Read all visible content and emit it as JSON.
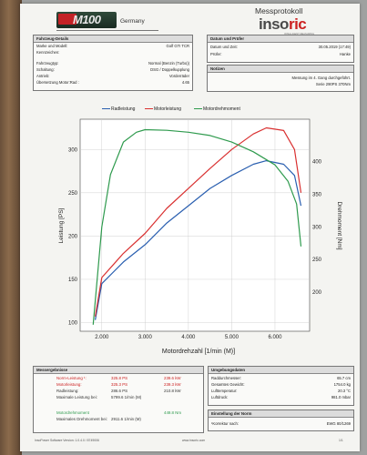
{
  "header": {
    "logo_text": "M100",
    "logo_country": "Germany",
    "title": "Messprotokoll",
    "brand_prefix": "inso",
    "brand_accent": "ric",
    "brand_sub": "INTELLIGENT MEASURING"
  },
  "vehicle": {
    "heading": "Fahrzeug-Details",
    "rows": [
      {
        "label": "Marke und Modell:",
        "value": "Golf GTI TCR"
      },
      {
        "label": "Kennzeichen:",
        "value": ""
      },
      {
        "label": "Fahrzeugtyp:",
        "value": "Normal (Benzin (Turbo))"
      },
      {
        "label": "Schaltung:",
        "value": "DSG / Doppelkupplung"
      },
      {
        "label": "Antrieb:",
        "value": "Vorderräder"
      },
      {
        "label": "Übersetzung Motor:Rad :",
        "value": "4.65"
      }
    ]
  },
  "test": {
    "heading": "Datum und Prüfer",
    "rows": [
      {
        "label": "Datum und Zeit:",
        "value": "30.05.2019 (17:49)"
      },
      {
        "label": "Prüfer:",
        "value": "Hanke"
      }
    ]
  },
  "notes": {
    "heading": "Notizen",
    "lines": [
      "Messung im 4. Gang durchgeführt.",
      "Serie 290PS 370Nm"
    ]
  },
  "chart_data": {
    "type": "line",
    "legend": [
      "Radleistung",
      "Motorleistung",
      "Motordrehmoment"
    ],
    "colors": {
      "Radleistung": "#2a5fb0",
      "Motorleistung": "#d93030",
      "Motordrehmoment": "#2e9a4d"
    },
    "xlabel": "Motordrehzahl [1/min (M)]",
    "ylabel": "Leistung [PS]",
    "y2label": "Drehmoment [Nm]",
    "x_ticks": [
      "2.000",
      "3.000",
      "4.000",
      "5.000",
      "6.000"
    ],
    "y_ticks": [
      "100",
      "150",
      "200",
      "250",
      "300"
    ],
    "y2_ticks": [
      "200",
      "250",
      "300",
      "350",
      "400"
    ],
    "xlim": [
      1500,
      6800
    ],
    "ylim": [
      90,
      335
    ],
    "y2lim": [
      140,
      465
    ],
    "series": [
      {
        "name": "Radleistung",
        "axis": "left",
        "x": [
          1850,
          2000,
          2500,
          3000,
          3500,
          4000,
          4500,
          5000,
          5500,
          5800,
          6200,
          6450,
          6600
        ],
        "y": [
          103,
          145,
          170,
          190,
          215,
          235,
          255,
          270,
          283,
          287,
          283,
          270,
          235
        ]
      },
      {
        "name": "Motorleistung",
        "axis": "left",
        "x": [
          1850,
          2000,
          2500,
          3000,
          3500,
          4000,
          4500,
          5000,
          5500,
          5800,
          6200,
          6450,
          6600
        ],
        "y": [
          107,
          152,
          180,
          203,
          232,
          255,
          278,
          300,
          318,
          325,
          322,
          300,
          250
        ]
      },
      {
        "name": "Motordrehmoment",
        "axis": "right",
        "x": [
          1800,
          2000,
          2200,
          2500,
          2800,
          3000,
          3500,
          4000,
          4500,
          5000,
          5500,
          6000,
          6300,
          6500,
          6600
        ],
        "y": [
          150,
          300,
          380,
          430,
          445,
          449,
          448,
          445,
          440,
          430,
          415,
          395,
          370,
          335,
          270
        ]
      }
    ]
  },
  "results": {
    "heading": "Messergebnisse",
    "rows": [
      {
        "label": "Norm-Leistung ¹:",
        "ps": "325.8 PS",
        "kw": "239.6 kW",
        "color": "red"
      },
      {
        "label": "Motorleistung:",
        "ps": "325.3 PS",
        "kw": "239.3 kW",
        "color": "red"
      },
      {
        "label": "Radleistung:",
        "ps": "286.6 PS",
        "kw": "210.8 kW",
        "color": "dark"
      },
      {
        "label": "Maximale Leistung bei:",
        "ps": "5799.6 1/min (M)",
        "kw": "",
        "color": "dark"
      }
    ],
    "torque_label": "Motordrehmoment",
    "torque_value": "449.8 Nm",
    "max_torque_label": "Maximales Drehmoment bei:",
    "max_torque_value": "2911.6 1/min (M)"
  },
  "environment": {
    "heading": "Umgebungsdaten",
    "rows": [
      {
        "label": "Raddurchmesser:",
        "value": "65.7 cm"
      },
      {
        "label": "Gesamtes Gewicht:",
        "value": "1754.0 kg"
      },
      {
        "label": "Lufttemperatur:",
        "value": "20.3 °C"
      },
      {
        "label": "Luftdruck:",
        "value": "981.0 mbar"
      }
    ]
  },
  "norm": {
    "heading": "Einstellung der Norm",
    "label": "¹Korrektur nach:",
    "value": "EWG 80/1269"
  },
  "footer": {
    "left": "InsoPower Software Version: 1.0.4.0 / 8749006",
    "center": "www.insoric.com",
    "right": "1/1"
  }
}
